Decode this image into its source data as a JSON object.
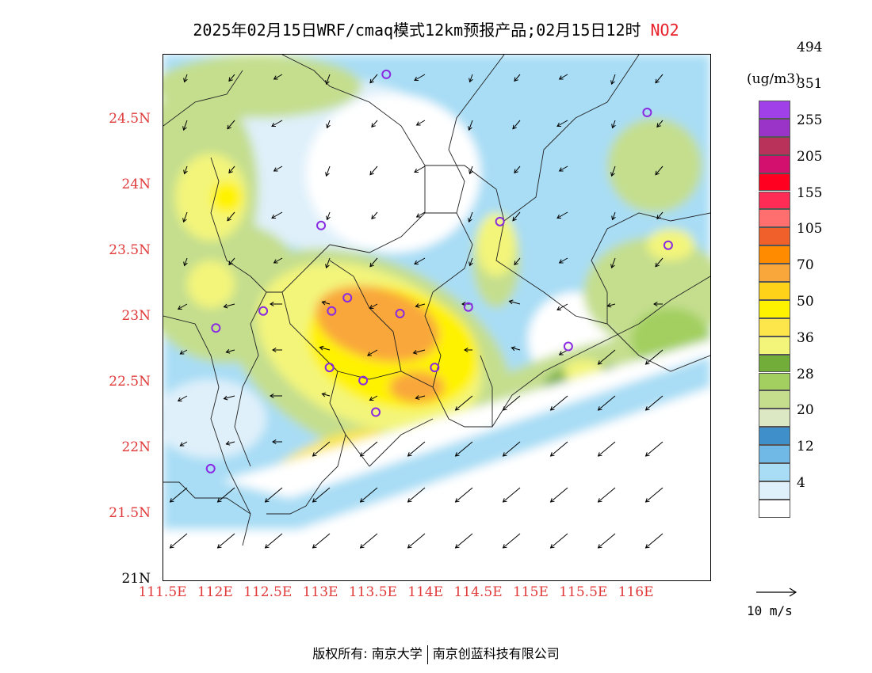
{
  "title": {
    "main": "2025年02月15日WRF/cmaq模式12km预报产品;02月15日12时",
    "species": "NO2",
    "species_color": "#e8202a"
  },
  "map": {
    "lat_ticks": [
      "24.5N",
      "24N",
      "23.5N",
      "23N",
      "22.5N",
      "22N",
      "21.5N",
      "21N"
    ],
    "lon_ticks": [
      "111.5E",
      "112E",
      "112.5E",
      "113E",
      "113.5E",
      "114E",
      "114.5E",
      "115E",
      "115.5E",
      "116E"
    ],
    "tick_color": "#e03a3a",
    "extent": {
      "lon_min": 111.5,
      "lon_max": 116.7,
      "lat_min": 21.0,
      "lat_max": 25.0
    },
    "station_color": "#8a2be2",
    "stations": [
      {
        "lon": 113.62,
        "lat": 24.85
      },
      {
        "lon": 116.1,
        "lat": 24.56
      },
      {
        "lon": 113.0,
        "lat": 23.7
      },
      {
        "lon": 114.7,
        "lat": 23.73
      },
      {
        "lon": 116.3,
        "lat": 23.55
      },
      {
        "lon": 112.45,
        "lat": 23.05
      },
      {
        "lon": 113.1,
        "lat": 23.05
      },
      {
        "lon": 113.25,
        "lat": 23.15
      },
      {
        "lon": 113.75,
        "lat": 23.03
      },
      {
        "lon": 114.4,
        "lat": 23.08
      },
      {
        "lon": 112.0,
        "lat": 22.92
      },
      {
        "lon": 115.35,
        "lat": 22.78
      },
      {
        "lon": 113.08,
        "lat": 22.62
      },
      {
        "lon": 113.4,
        "lat": 22.52
      },
      {
        "lon": 114.08,
        "lat": 22.62
      },
      {
        "lon": 113.52,
        "lat": 22.28
      },
      {
        "lon": 111.95,
        "lat": 21.85
      }
    ]
  },
  "colorbar": {
    "unit": "(ug/m3)",
    "colors": [
      "#ffffff",
      "#dff0fa",
      "#a8ddf5",
      "#70b8e6",
      "#3f8fcb",
      "#dce8c4",
      "#c4de8e",
      "#a2cf5f",
      "#72ad3a",
      "#f3f57a",
      "#fce64b",
      "#fff200",
      "#ffd21a",
      "#f9a73a",
      "#ff8c00",
      "#f0602a",
      "#ff6f6f",
      "#ff2d55",
      "#ff0020",
      "#d4106e",
      "#b8325a",
      "#9a34c8",
      "#a040e8"
    ],
    "labels": [
      "4",
      "12",
      "20",
      "28",
      "36",
      "50",
      "70",
      "105",
      "155",
      "205",
      "255",
      "351",
      "494"
    ]
  },
  "wind_reference": {
    "label": "10 m/s"
  },
  "footer": {
    "left": "版权所有: 南京大学",
    "right": "南京创蓝科技有限公司"
  }
}
